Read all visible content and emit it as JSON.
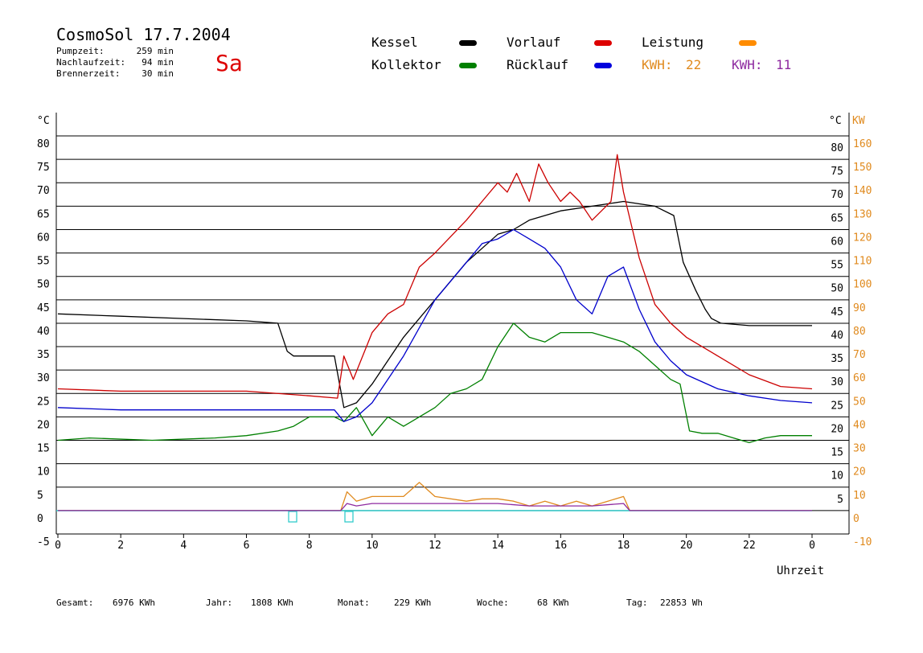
{
  "header": {
    "title": "CosmoSol 17.7.2004",
    "weekday": "Sa",
    "stats": [
      {
        "label": "Pumpzeit:",
        "value": "259 min"
      },
      {
        "label": "Nachlaufzeit:",
        "value": "94 min"
      },
      {
        "label": "Brennerzeit:",
        "value": "30 min"
      }
    ]
  },
  "legend": {
    "items": [
      {
        "label": "Kessel",
        "color": "#000000"
      },
      {
        "label": "Vorlauf",
        "color": "#cc0000"
      },
      {
        "label": "Leistung",
        "color": "#ff8c00"
      },
      {
        "label": "Kollektor",
        "color": "#008000"
      },
      {
        "label": "Rücklauf",
        "color": "#0000cc"
      }
    ],
    "kwh": [
      {
        "label": "KWH:",
        "value": "22",
        "color": "#e08a1e"
      },
      {
        "label": "KWH:",
        "value": "11",
        "color": "#8e2aa0"
      }
    ]
  },
  "footer": [
    {
      "label": "Gesamt:",
      "value": "6976 KWh"
    },
    {
      "label": "Jahr:",
      "value": "1808 KWh"
    },
    {
      "label": "Monat:",
      "value": "229 KWh"
    },
    {
      "label": "Woche:",
      "value": "68 KWh"
    },
    {
      "label": "Tag:",
      "value": "22853 Wh"
    }
  ],
  "chart_data": {
    "type": "line",
    "xlabel": "Uhrzeit",
    "x_ticks": [
      "0",
      "2",
      "4",
      "6",
      "8",
      "10",
      "12",
      "14",
      "16",
      "18",
      "20",
      "22",
      "0"
    ],
    "xlim": [
      0,
      24
    ],
    "y_left_unit": "°C",
    "y_left_ticks": [
      "80",
      "75",
      "70",
      "65",
      "60",
      "55",
      "50",
      "45",
      "40",
      "35",
      "30",
      "25",
      "20",
      "15",
      "10",
      "5",
      "0",
      "-5"
    ],
    "y_left_ticks_inner": [
      "80",
      "75",
      "70",
      "65",
      "60",
      "55",
      "50",
      "45",
      "40",
      "35",
      "30",
      "25",
      "20",
      "15",
      "10",
      "5"
    ],
    "ylim": [
      -5,
      80
    ],
    "y_right_units": [
      "°C",
      "KW"
    ],
    "y_right_kw_ticks": [
      "160",
      "150",
      "140",
      "130",
      "120",
      "110",
      "100",
      "90",
      "80",
      "70",
      "60",
      "50",
      "40",
      "30",
      "20",
      "10",
      "0",
      "-10"
    ],
    "grid": true,
    "series": [
      {
        "name": "Kessel",
        "color": "#000000",
        "x": [
          0,
          2,
          4,
          6,
          7,
          7.3,
          7.5,
          8,
          8.8,
          9.1,
          9.5,
          10,
          11,
          12,
          13,
          14,
          14.5,
          15,
          16,
          17,
          18,
          19,
          19.6,
          19.9,
          20.3,
          20.6,
          20.8,
          21.1,
          22,
          23,
          24
        ],
        "y": [
          42,
          41.5,
          41,
          40.5,
          40,
          34,
          33,
          33,
          33,
          22,
          23,
          27,
          37,
          45,
          53,
          59,
          60,
          62,
          64,
          65,
          66,
          65,
          63,
          53,
          47,
          43,
          41,
          40,
          39.5,
          39.5,
          39.5
        ]
      },
      {
        "name": "Vorlauf",
        "color": "#cc0000",
        "x": [
          0,
          2,
          4,
          6,
          8,
          8.9,
          9.1,
          9.4,
          10,
          10.5,
          11,
          11.5,
          12,
          13,
          13.5,
          14,
          14.3,
          14.6,
          15,
          15.3,
          15.6,
          16,
          16.3,
          16.6,
          17,
          17.3,
          17.6,
          17.8,
          18,
          18.5,
          19,
          19.5,
          20,
          21,
          22,
          23,
          24
        ],
        "y": [
          26,
          25.5,
          25.5,
          25.5,
          24.5,
          24,
          33,
          28,
          38,
          42,
          44,
          52,
          55,
          62,
          66,
          70,
          68,
          72,
          66,
          74,
          70,
          66,
          68,
          66,
          62,
          64,
          66,
          76,
          68,
          54,
          44,
          40,
          37,
          33,
          29,
          26.5,
          26
        ]
      },
      {
        "name": "Kollektor",
        "color": "#008000",
        "x": [
          0,
          1,
          3,
          5,
          6,
          7,
          7.5,
          8,
          8.8,
          9.1,
          9.5,
          10,
          10.5,
          11,
          11.5,
          12,
          12.5,
          13,
          13.5,
          14,
          14.5,
          15,
          15.5,
          16,
          16.5,
          17,
          17.5,
          18,
          18.5,
          19,
          19.5,
          19.8,
          20.1,
          20.5,
          21,
          21.5,
          22,
          22.5,
          23,
          24
        ],
        "y": [
          15,
          15.5,
          15,
          15.5,
          16,
          17,
          18,
          20,
          20,
          19,
          22,
          16,
          20,
          18,
          20,
          22,
          25,
          26,
          28,
          35,
          40,
          37,
          36,
          38,
          38,
          38,
          37,
          36,
          34,
          31,
          28,
          27,
          17,
          16.5,
          16.5,
          15.5,
          14.5,
          15.5,
          16,
          16
        ]
      },
      {
        "name": "Rücklauf",
        "color": "#0000cc",
        "x": [
          0,
          2,
          4,
          6,
          8,
          8.8,
          9.1,
          9.5,
          10,
          11,
          12,
          13,
          13.5,
          14,
          14.5,
          15,
          15.5,
          16,
          16.5,
          17,
          17.5,
          18,
          18.5,
          19,
          19.5,
          20,
          21,
          22,
          23,
          24
        ],
        "y": [
          22,
          21.5,
          21.5,
          21.5,
          21.5,
          21.5,
          19,
          20,
          23,
          33,
          45,
          53,
          57,
          58,
          60,
          58,
          56,
          52,
          45,
          42,
          50,
          52,
          43,
          36,
          32,
          29,
          26,
          24.5,
          23.5,
          23
        ]
      },
      {
        "name": "Leistung",
        "color": "#e08a1e",
        "x": [
          0,
          8,
          9,
          9.2,
          9.5,
          10,
          11,
          11.5,
          12,
          13,
          13.5,
          14,
          14.5,
          15,
          15.5,
          16,
          16.5,
          17,
          17.5,
          18,
          18.2,
          24
        ],
        "y": [
          0,
          0,
          0,
          4,
          2,
          3,
          3,
          6,
          3,
          2,
          2.5,
          2.5,
          2,
          1,
          2,
          1,
          2,
          1,
          2,
          3,
          0,
          0
        ]
      },
      {
        "name": "Purple",
        "color": "#8e2aa0",
        "x": [
          0,
          8,
          9,
          9.2,
          9.5,
          10,
          11,
          12,
          13,
          14,
          15,
          16,
          17,
          18,
          18.2,
          24
        ],
        "y": [
          0,
          0,
          0,
          1.5,
          1,
          1.5,
          1.5,
          1.5,
          1.5,
          1.5,
          1,
          1,
          1,
          1.5,
          0,
          0
        ]
      }
    ]
  }
}
